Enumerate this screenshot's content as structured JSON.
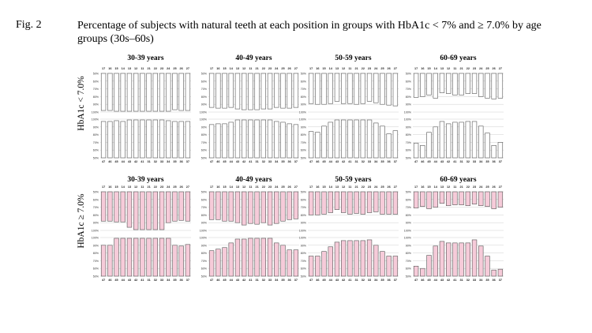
{
  "figure": {
    "label": "Fig. 2",
    "title": "Percentage of subjects with natural teeth at each position in groups with HbA1c < 7% and ≥ 7.0% by age groups (30s–60s)"
  },
  "row_labels": [
    "HbA1c < 7.0%",
    "HbA1c ≥ 7.0%"
  ],
  "colors": {
    "low_bar": "#ffffff",
    "high_bar": "#f6cbd9",
    "bar_stroke": "#555555",
    "grid": "#cfcfcf"
  },
  "chart_data": [
    {
      "type": "bar",
      "panel": "upper-jaw",
      "row": "HbA1c < 7.0%",
      "column_title": "30-39 years",
      "categories": [
        "17",
        "16",
        "15",
        "14",
        "13",
        "12",
        "11",
        "21",
        "22",
        "23",
        "24",
        "25",
        "26",
        "27"
      ],
      "values": [
        98,
        98,
        99,
        99,
        99,
        99,
        99,
        99,
        99,
        99,
        99,
        97,
        98,
        98
      ],
      "yticks": [
        "50%",
        "60%",
        "70%",
        "80%",
        "90%",
        "100%"
      ],
      "ylim": [
        50,
        100
      ],
      "inverted": true
    },
    {
      "type": "bar",
      "panel": "lower-jaw",
      "row": "HbA1c < 7.0%",
      "column_title": "30-39 years",
      "categories": [
        "47",
        "46",
        "45",
        "44",
        "43",
        "42",
        "41",
        "31",
        "32",
        "33",
        "34",
        "35",
        "36",
        "37"
      ],
      "values": [
        97,
        97,
        98,
        97,
        99,
        99,
        99,
        99,
        99,
        99,
        98,
        97,
        97,
        97
      ],
      "yticks": [
        "100%",
        "90%",
        "80%",
        "70%",
        "60%",
        "50%"
      ],
      "ylim": [
        50,
        100
      ],
      "inverted": false
    },
    {
      "type": "bar",
      "panel": "upper-jaw",
      "row": "HbA1c < 7.0%",
      "column_title": "40-49 years",
      "categories": [
        "17",
        "16",
        "15",
        "14",
        "13",
        "12",
        "11",
        "21",
        "22",
        "23",
        "24",
        "25",
        "26",
        "27"
      ],
      "values": [
        94,
        95,
        95,
        94,
        96,
        97,
        97,
        97,
        96,
        96,
        94,
        95,
        95,
        94
      ],
      "yticks": [
        "50%",
        "60%",
        "70%",
        "80%",
        "90%",
        "100%"
      ],
      "ylim": [
        50,
        100
      ],
      "inverted": true
    },
    {
      "type": "bar",
      "panel": "lower-jaw",
      "row": "HbA1c < 7.0%",
      "column_title": "40-49 years",
      "categories": [
        "47",
        "46",
        "45",
        "44",
        "43",
        "42",
        "41",
        "31",
        "32",
        "33",
        "34",
        "35",
        "36",
        "37"
      ],
      "values": [
        93,
        94,
        94,
        96,
        99,
        99,
        99,
        99,
        99,
        99,
        97,
        96,
        94,
        93
      ],
      "yticks": [
        "100%",
        "90%",
        "80%",
        "70%",
        "60%",
        "50%"
      ],
      "ylim": [
        50,
        100
      ],
      "inverted": false
    },
    {
      "type": "bar",
      "panel": "upper-jaw",
      "row": "HbA1c < 7.0%",
      "column_title": "50-59 years",
      "categories": [
        "17",
        "16",
        "15",
        "14",
        "13",
        "12",
        "11",
        "21",
        "22",
        "23",
        "24",
        "25",
        "26",
        "27"
      ],
      "values": [
        89,
        90,
        90,
        89,
        86,
        89,
        89,
        90,
        89,
        86,
        88,
        90,
        91,
        92
      ],
      "yticks": [
        "50%",
        "60%",
        "70%",
        "80%",
        "90%",
        "100%"
      ],
      "ylim": [
        50,
        100
      ],
      "inverted": true
    },
    {
      "type": "bar",
      "panel": "lower-jaw",
      "row": "HbA1c < 7.0%",
      "column_title": "50-59 years",
      "categories": [
        "47",
        "46",
        "45",
        "44",
        "43",
        "42",
        "41",
        "31",
        "32",
        "33",
        "34",
        "35",
        "36",
        "37"
      ],
      "values": [
        84,
        83,
        91,
        96,
        99,
        99,
        99,
        99,
        99,
        99,
        95,
        91,
        81,
        85
      ],
      "yticks": [
        "100%",
        "90%",
        "80%",
        "70%",
        "60%",
        "50%"
      ],
      "ylim": [
        50,
        100
      ],
      "inverted": false
    },
    {
      "type": "bar",
      "panel": "upper-jaw",
      "row": "HbA1c < 7.0%",
      "column_title": "60-69 years",
      "categories": [
        "17",
        "16",
        "15",
        "14",
        "13",
        "12",
        "11",
        "21",
        "22",
        "23",
        "24",
        "25",
        "26",
        "27"
      ],
      "values": [
        81,
        80,
        78,
        82,
        75,
        76,
        78,
        78,
        76,
        76,
        80,
        82,
        83,
        82
      ],
      "yticks": [
        "50%",
        "60%",
        "70%",
        "80%",
        "90%",
        "100%"
      ],
      "ylim": [
        50,
        100
      ],
      "inverted": true
    },
    {
      "type": "bar",
      "panel": "lower-jaw",
      "row": "HbA1c < 7.0%",
      "column_title": "60-69 years",
      "categories": [
        "47",
        "46",
        "45",
        "44",
        "43",
        "42",
        "41",
        "31",
        "32",
        "33",
        "34",
        "35",
        "36",
        "37"
      ],
      "values": [
        69,
        66,
        83,
        90,
        97,
        94,
        96,
        96,
        97,
        97,
        91,
        82,
        66,
        70
      ],
      "yticks": [
        "100%",
        "90%",
        "80%",
        "70%",
        "60%",
        "50%"
      ],
      "ylim": [
        50,
        100
      ],
      "inverted": false
    },
    {
      "type": "bar",
      "panel": "upper-jaw",
      "row": "HbA1c ≥ 7.0%",
      "column_title": "30-39 years",
      "categories": [
        "17",
        "16",
        "15",
        "14",
        "13",
        "12",
        "11",
        "21",
        "22",
        "23",
        "24",
        "25",
        "26",
        "27"
      ],
      "values": [
        88,
        88,
        89,
        89,
        96,
        99,
        99,
        99,
        99,
        99,
        90,
        88,
        87,
        88
      ],
      "yticks": [
        "50%",
        "60%",
        "70%",
        "80%",
        "90%",
        "100%"
      ],
      "ylim": [
        50,
        100
      ],
      "inverted": true
    },
    {
      "type": "bar",
      "panel": "lower-jaw",
      "row": "HbA1c ≥ 7.0%",
      "column_title": "30-39 years",
      "categories": [
        "47",
        "46",
        "45",
        "44",
        "43",
        "42",
        "41",
        "31",
        "32",
        "33",
        "34",
        "35",
        "36",
        "37"
      ],
      "values": [
        90,
        90,
        99,
        99,
        99,
        99,
        99,
        99,
        99,
        99,
        99,
        90,
        89,
        91
      ],
      "yticks": [
        "100%",
        "90%",
        "80%",
        "70%",
        "60%",
        "50%"
      ],
      "ylim": [
        50,
        100
      ],
      "inverted": false
    },
    {
      "type": "bar",
      "panel": "upper-jaw",
      "row": "HbA1c ≥ 7.0%",
      "column_title": "40-49 years",
      "categories": [
        "17",
        "16",
        "15",
        "14",
        "13",
        "12",
        "11",
        "21",
        "22",
        "23",
        "24",
        "25",
        "26",
        "27"
      ],
      "values": [
        86,
        86,
        88,
        88,
        90,
        93,
        91,
        92,
        90,
        93,
        91,
        88,
        86,
        85
      ],
      "yticks": [
        "50%",
        "60%",
        "70%",
        "80%",
        "90%",
        "100%"
      ],
      "ylim": [
        50,
        100
      ],
      "inverted": true
    },
    {
      "type": "bar",
      "panel": "lower-jaw",
      "row": "HbA1c ≥ 7.0%",
      "column_title": "40-49 years",
      "categories": [
        "47",
        "46",
        "45",
        "44",
        "43",
        "42",
        "41",
        "31",
        "32",
        "33",
        "34",
        "35",
        "36",
        "37"
      ],
      "values": [
        83,
        85,
        87,
        93,
        98,
        98,
        99,
        99,
        99,
        99,
        93,
        90,
        84,
        84
      ],
      "yticks": [
        "100%",
        "90%",
        "80%",
        "70%",
        "60%",
        "50%"
      ],
      "ylim": [
        50,
        100
      ],
      "inverted": false
    },
    {
      "type": "bar",
      "panel": "upper-jaw",
      "row": "HbA1c ≥ 7.0%",
      "column_title": "50-59 years",
      "categories": [
        "17",
        "16",
        "15",
        "14",
        "13",
        "12",
        "11",
        "21",
        "22",
        "23",
        "24",
        "25",
        "26",
        "27"
      ],
      "values": [
        80,
        80,
        79,
        77,
        73,
        77,
        79,
        78,
        79,
        77,
        76,
        79,
        79,
        79
      ],
      "yticks": [
        "50%",
        "60%",
        "70%",
        "80%",
        "90%",
        "100%"
      ],
      "ylim": [
        50,
        100
      ],
      "inverted": true
    },
    {
      "type": "bar",
      "panel": "lower-jaw",
      "row": "HbA1c ≥ 7.0%",
      "column_title": "50-59 years",
      "categories": [
        "47",
        "46",
        "45",
        "44",
        "43",
        "42",
        "41",
        "31",
        "32",
        "33",
        "34",
        "35",
        "36",
        "37"
      ],
      "values": [
        76,
        76,
        82,
        88,
        94,
        96,
        96,
        96,
        96,
        97,
        90,
        82,
        76,
        76
      ],
      "yticks": [
        "100%",
        "90%",
        "80%",
        "70%",
        "60%",
        "50%"
      ],
      "ylim": [
        50,
        100
      ],
      "inverted": false
    },
    {
      "type": "bar",
      "panel": "upper-jaw",
      "row": "HbA1c ≥ 7.0%",
      "column_title": "60-69 years",
      "categories": [
        "17",
        "16",
        "15",
        "14",
        "13",
        "12",
        "11",
        "21",
        "22",
        "23",
        "24",
        "25",
        "26",
        "27"
      ],
      "values": [
        71,
        69,
        72,
        70,
        65,
        68,
        67,
        67,
        68,
        66,
        68,
        69,
        72,
        70
      ],
      "yticks": [
        "50%",
        "60%",
        "70%",
        "80%",
        "90%",
        "100%"
      ],
      "ylim": [
        50,
        100
      ],
      "inverted": true
    },
    {
      "type": "bar",
      "panel": "lower-jaw",
      "row": "HbA1c ≥ 7.0%",
      "column_title": "60-69 years",
      "categories": [
        "47",
        "46",
        "45",
        "44",
        "43",
        "42",
        "41",
        "31",
        "32",
        "33",
        "34",
        "35",
        "36",
        "37"
      ],
      "values": [
        63,
        60,
        77,
        89,
        95,
        93,
        93,
        93,
        93,
        97,
        89,
        76,
        58,
        59
      ],
      "yticks": [
        "100%",
        "90%",
        "80%",
        "70%",
        "60%",
        "50%"
      ],
      "ylim": [
        50,
        100
      ],
      "inverted": false
    }
  ]
}
